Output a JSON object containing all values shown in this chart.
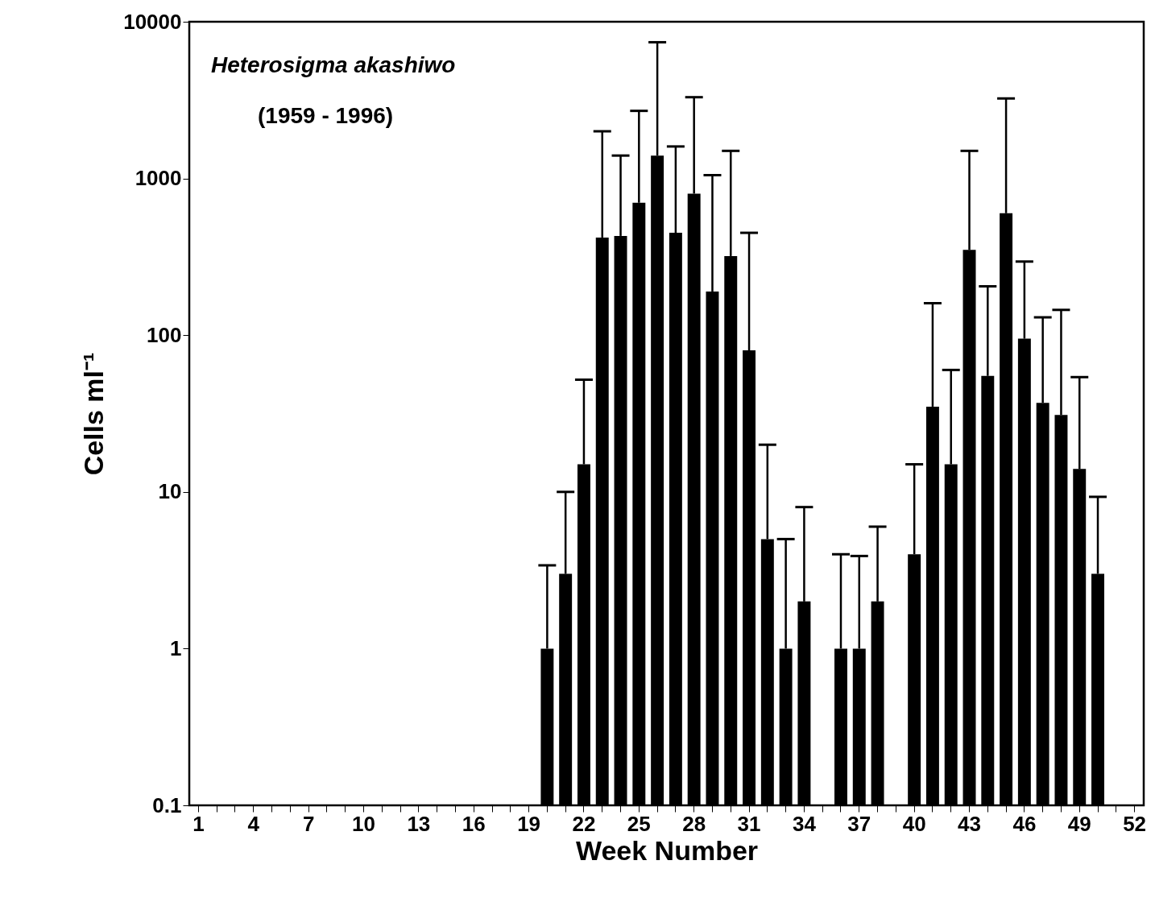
{
  "chart_data": {
    "type": "bar",
    "xlabel": "Week Number",
    "ylabel": "Cells ml⁻¹",
    "annotations": [
      "Heterosigma akashiwo",
      "(1959 - 1996)"
    ],
    "categories": [
      "1",
      null,
      null,
      "4",
      null,
      null,
      "7",
      null,
      null,
      "10",
      null,
      null,
      "13",
      null,
      null,
      "16",
      null,
      null,
      "19",
      null,
      null,
      "22",
      null,
      null,
      "25",
      null,
      null,
      "28",
      null,
      null,
      "31",
      null,
      null,
      "34",
      null,
      null,
      "37",
      null,
      null,
      "40",
      null,
      null,
      "43",
      null,
      null,
      "46",
      null,
      null,
      "49",
      null,
      null,
      "52"
    ],
    "values": [
      null,
      null,
      null,
      null,
      null,
      null,
      null,
      null,
      null,
      null,
      null,
      null,
      null,
      null,
      null,
      null,
      null,
      null,
      null,
      1,
      3,
      15,
      420,
      430,
      700,
      1400,
      450,
      800,
      190,
      320,
      80,
      5,
      1,
      2,
      null,
      1,
      1,
      2,
      null,
      4,
      35,
      15,
      350,
      55,
      600,
      95,
      37,
      31,
      14,
      3,
      null,
      null
    ],
    "errors": [
      null,
      null,
      null,
      null,
      null,
      null,
      null,
      null,
      null,
      null,
      null,
      null,
      null,
      null,
      null,
      null,
      null,
      null,
      null,
      [
        1,
        3.4
      ],
      [
        3,
        10
      ],
      [
        15,
        52
      ],
      [
        420,
        2000
      ],
      [
        430,
        1400
      ],
      [
        700,
        2700
      ],
      [
        1400,
        7400
      ],
      [
        450,
        1600
      ],
      [
        800,
        3300
      ],
      [
        190,
        1050
      ],
      [
        320,
        1500
      ],
      [
        80,
        450
      ],
      [
        5,
        20
      ],
      [
        1,
        5
      ],
      [
        2,
        8
      ],
      null,
      [
        1,
        4
      ],
      [
        1,
        3.9
      ],
      [
        2,
        6
      ],
      null,
      [
        4,
        15
      ],
      [
        35,
        160
      ],
      [
        15,
        60
      ],
      [
        350,
        1500
      ],
      [
        55,
        205
      ],
      [
        600,
        3240
      ],
      [
        95,
        295
      ],
      [
        37,
        130
      ],
      [
        31,
        145
      ],
      [
        14,
        54
      ],
      [
        3,
        9.3
      ],
      null,
      null
    ],
    "color": "#000000",
    "log": true,
    "ylim": [
      0.1,
      10000
    ],
    "yticks": [
      0.1,
      1,
      10,
      100,
      1000,
      10000
    ],
    "grid": false
  }
}
